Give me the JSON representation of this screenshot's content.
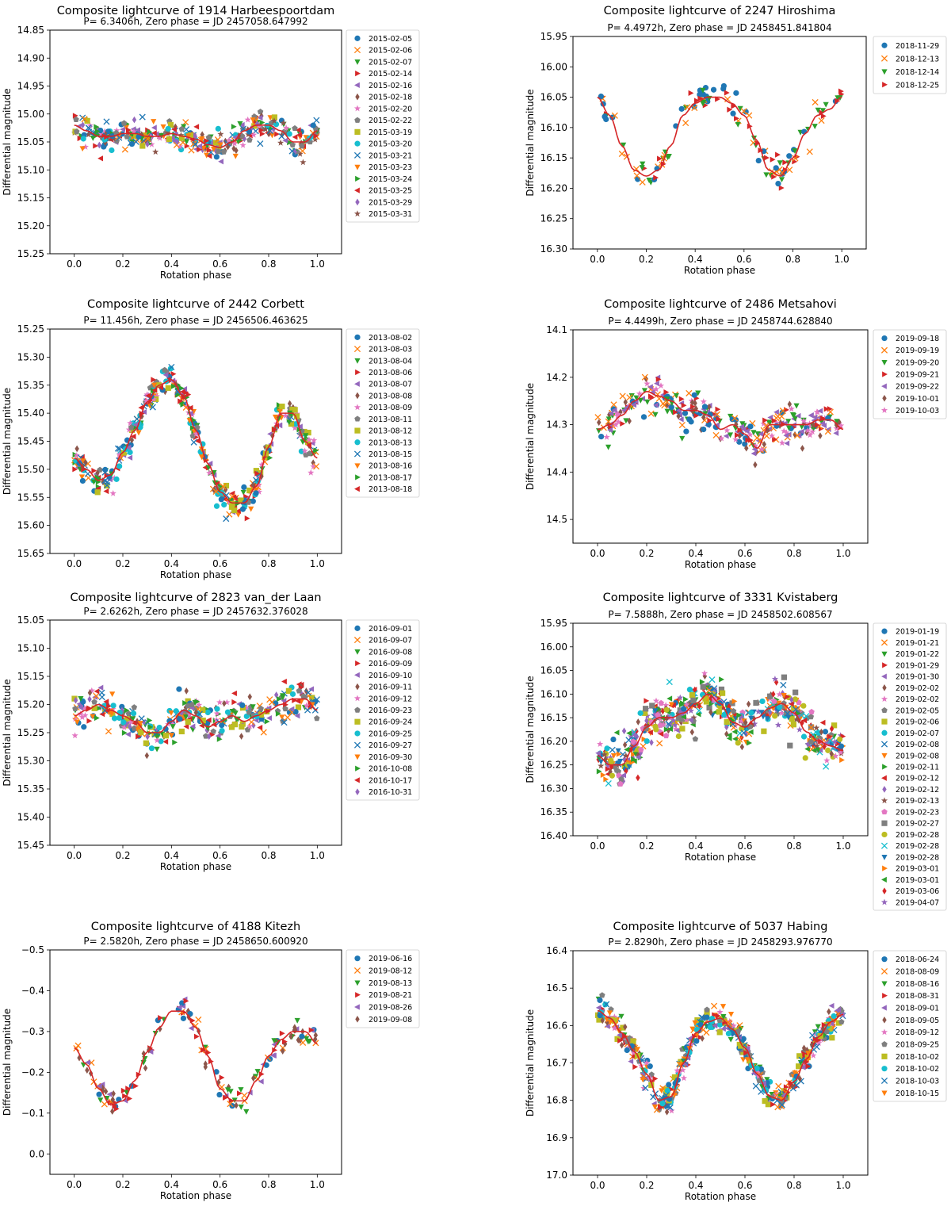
{
  "figure": {
    "domain_note": "",
    "palette": [
      "#1f77b4",
      "#ff7f0e",
      "#2ca02c",
      "#d62728",
      "#9467bd",
      "#8c564b",
      "#e377c2",
      "#7f7f7f",
      "#bcbd22",
      "#17becf"
    ],
    "marker_cycle": [
      "circle",
      "x",
      "triangle-down",
      "triangle-right",
      "triangle-left",
      "diamond",
      "star",
      "pentagon",
      "square"
    ],
    "fit_color": "#d62728"
  },
  "chart_data": [
    {
      "type": "scatter",
      "title": "Composite lightcurve of 1914 Harbeespoortdam",
      "subtitle": "P=  6.3406h, Zero phase = JD 2457058.647992",
      "xlabel": "Rotation phase",
      "ylabel": "Differential magnitude",
      "xlim": [
        -0.1,
        1.1
      ],
      "ylim": [
        15.25,
        14.85
      ],
      "xticks": [
        0.0,
        0.2,
        0.4,
        0.6,
        0.8,
        1.0
      ],
      "yticks": [
        14.85,
        14.9,
        14.95,
        15.0,
        15.05,
        15.1,
        15.15,
        15.2,
        15.25
      ],
      "ytick_labels": [
        "14.85",
        "14.90",
        "14.95",
        "15.00",
        "15.05",
        "15.10",
        "15.15",
        "15.20",
        "15.25"
      ],
      "legend": [
        "2015-02-05",
        "2015-02-06",
        "2015-02-07",
        "2015-02-14",
        "2015-02-16",
        "2015-02-18",
        "2015-02-20",
        "2015-02-22",
        "2015-03-19",
        "2015-03-20",
        "2015-03-21",
        "2015-03-23",
        "2015-03-24",
        "2015-03-25",
        "2015-03-29",
        "2015-03-31"
      ],
      "legend_colors": [
        0,
        1,
        2,
        3,
        4,
        5,
        6,
        7,
        8,
        9,
        0,
        1,
        2,
        3,
        4,
        5
      ],
      "fit_curve": {
        "x": [
          0.0,
          0.05,
          0.1,
          0.15,
          0.2,
          0.25,
          0.3,
          0.35,
          0.4,
          0.45,
          0.5,
          0.55,
          0.6,
          0.65,
          0.7,
          0.75,
          0.8,
          0.85,
          0.9,
          0.95,
          1.0
        ],
        "y": [
          15.02,
          15.03,
          15.04,
          15.04,
          15.035,
          15.035,
          15.04,
          15.04,
          15.035,
          15.04,
          15.045,
          15.055,
          15.06,
          15.05,
          15.03,
          15.02,
          15.02,
          15.03,
          15.05,
          15.05,
          15.03
        ]
      },
      "scatter_spread": 0.02,
      "scatter_count": 360
    },
    {
      "type": "scatter",
      "title": "Composite lightcurve of 2247 Hiroshima",
      "subtitle": "P=  4.4972h, Zero phase = JD 2458451.841804",
      "xlabel": "Rotation phase",
      "ylabel": "Differential magnitude",
      "xlim": [
        -0.1,
        1.1
      ],
      "ylim": [
        16.3,
        15.95
      ],
      "xticks": [
        0.0,
        0.2,
        0.4,
        0.6,
        0.8,
        1.0
      ],
      "yticks": [
        15.95,
        16.0,
        16.05,
        16.1,
        16.15,
        16.2,
        16.25,
        16.3
      ],
      "ytick_labels": [
        "15.95",
        "16.00",
        "16.05",
        "16.10",
        "16.15",
        "16.20",
        "16.25",
        "16.30"
      ],
      "legend": [
        "2018-11-29",
        "2018-12-13",
        "2018-12-14",
        "2018-12-25"
      ],
      "legend_colors": [
        0,
        1,
        2,
        3
      ],
      "fit_curve": {
        "x": [
          0.0,
          0.05,
          0.1,
          0.15,
          0.2,
          0.25,
          0.3,
          0.35,
          0.4,
          0.45,
          0.5,
          0.55,
          0.6,
          0.65,
          0.7,
          0.75,
          0.8,
          0.85,
          0.9,
          0.95,
          1.0
        ],
        "y": [
          16.05,
          16.08,
          16.13,
          16.17,
          16.18,
          16.17,
          16.13,
          16.08,
          16.06,
          16.05,
          16.05,
          16.06,
          16.08,
          16.12,
          16.17,
          16.18,
          16.15,
          16.11,
          16.08,
          16.07,
          16.05
        ]
      },
      "scatter_spread": 0.02,
      "scatter_count": 130
    },
    {
      "type": "scatter",
      "title": "Composite lightcurve of 2442 Corbett",
      "subtitle": "P=  11.456h, Zero phase = JD 2456506.463625",
      "xlabel": "Rotation phase",
      "ylabel": "Differential magnitude",
      "xlim": [
        -0.1,
        1.1
      ],
      "ylim": [
        15.65,
        15.25
      ],
      "xticks": [
        0.0,
        0.2,
        0.4,
        0.6,
        0.8,
        1.0
      ],
      "yticks": [
        15.25,
        15.3,
        15.35,
        15.4,
        15.45,
        15.5,
        15.55,
        15.6,
        15.65
      ],
      "ytick_labels": [
        "15.25",
        "15.30",
        "15.35",
        "15.40",
        "15.45",
        "15.50",
        "15.55",
        "15.60",
        "15.65"
      ],
      "legend": [
        "2013-08-02",
        "2013-08-03",
        "2013-08-04",
        "2013-08-06",
        "2013-08-07",
        "2013-08-08",
        "2013-08-09",
        "2013-08-11",
        "2013-08-12",
        "2013-08-13",
        "2013-08-15",
        "2013-08-16",
        "2013-08-17",
        "2013-08-18"
      ],
      "legend_colors": [
        0,
        1,
        2,
        3,
        4,
        5,
        6,
        7,
        8,
        9,
        0,
        1,
        2,
        3
      ],
      "fit_curve": {
        "x": [
          0.0,
          0.05,
          0.1,
          0.15,
          0.2,
          0.25,
          0.3,
          0.35,
          0.4,
          0.45,
          0.5,
          0.55,
          0.6,
          0.65,
          0.7,
          0.75,
          0.8,
          0.85,
          0.9,
          0.95,
          1.0
        ],
        "y": [
          15.48,
          15.5,
          15.52,
          15.51,
          15.47,
          15.43,
          15.38,
          15.35,
          15.34,
          15.37,
          15.43,
          15.49,
          15.54,
          15.56,
          15.56,
          15.53,
          15.46,
          15.4,
          15.4,
          15.45,
          15.48
        ]
      },
      "scatter_spread": 0.02,
      "scatter_count": 420
    },
    {
      "type": "scatter",
      "title": "Composite lightcurve of 2486 Metsahovi",
      "subtitle": "P=  4.4499h, Zero phase = JD 2458744.628840",
      "xlabel": "Rotation phase",
      "ylabel": "Differential magnitude",
      "xlim": [
        -0.1,
        1.1
      ],
      "ylim": [
        14.55,
        14.1
      ],
      "xticks": [
        0.0,
        0.2,
        0.4,
        0.6,
        0.8,
        1.0
      ],
      "yticks": [
        14.1,
        14.2,
        14.3,
        14.4,
        14.5
      ],
      "ytick_labels": [
        "14.1",
        "14.2",
        "14.3",
        "14.4",
        "14.5"
      ],
      "legend": [
        "2019-09-18",
        "2019-09-19",
        "2019-09-20",
        "2019-09-21",
        "2019-09-22",
        "2019-10-01",
        "2019-10-03"
      ],
      "legend_colors": [
        0,
        1,
        2,
        3,
        4,
        5,
        6
      ],
      "fit_curve": {
        "x": [
          0.0,
          0.05,
          0.1,
          0.15,
          0.2,
          0.25,
          0.3,
          0.35,
          0.4,
          0.45,
          0.5,
          0.55,
          0.6,
          0.65,
          0.7,
          0.75,
          0.8,
          0.85,
          0.9,
          0.95,
          1.0
        ],
        "y": [
          14.31,
          14.3,
          14.28,
          14.25,
          14.23,
          14.24,
          14.25,
          14.27,
          14.27,
          14.28,
          14.31,
          14.3,
          14.32,
          14.35,
          14.3,
          14.3,
          14.3,
          14.3,
          14.29,
          14.29,
          14.31
        ]
      },
      "scatter_spread": 0.03,
      "scatter_count": 320
    },
    {
      "type": "scatter",
      "title": "Composite lightcurve of 2823 van_der Laan",
      "subtitle": "P=  2.6262h, Zero phase = JD 2457632.376028",
      "xlabel": "Rotation phase",
      "ylabel": "Differential magnitude",
      "xlim": [
        -0.1,
        1.1
      ],
      "ylim": [
        15.45,
        15.05
      ],
      "xticks": [
        0.0,
        0.2,
        0.4,
        0.6,
        0.8,
        1.0
      ],
      "yticks": [
        15.05,
        15.1,
        15.15,
        15.2,
        15.25,
        15.3,
        15.35,
        15.4,
        15.45
      ],
      "ytick_labels": [
        "15.05",
        "15.10",
        "15.15",
        "15.20",
        "15.25",
        "15.30",
        "15.35",
        "15.40",
        "15.45"
      ],
      "legend": [
        "2016-09-01",
        "2016-09-07",
        "2016-09-08",
        "2016-09-09",
        "2016-09-10",
        "2016-09-11",
        "2016-09-12",
        "2016-09-23",
        "2016-09-24",
        "2016-09-25",
        "2016-09-27",
        "2016-09-30",
        "2016-10-08",
        "2016-10-17",
        "2016-10-31"
      ],
      "legend_colors": [
        0,
        1,
        2,
        3,
        4,
        5,
        6,
        7,
        8,
        9,
        0,
        1,
        2,
        3,
        4
      ],
      "fit_curve": {
        "x": [
          0.0,
          0.05,
          0.1,
          0.15,
          0.2,
          0.25,
          0.3,
          0.35,
          0.4,
          0.45,
          0.5,
          0.55,
          0.6,
          0.65,
          0.7,
          0.75,
          0.8,
          0.85,
          0.9,
          0.95,
          1.0
        ],
        "y": [
          15.22,
          15.21,
          15.2,
          15.21,
          15.22,
          15.23,
          15.25,
          15.25,
          15.23,
          15.21,
          15.22,
          15.24,
          15.23,
          15.22,
          15.23,
          15.22,
          15.21,
          15.2,
          15.19,
          15.19,
          15.21
        ]
      },
      "scatter_spread": 0.025,
      "scatter_count": 360
    },
    {
      "type": "scatter",
      "title": "Composite lightcurve of 3331 Kvistaberg",
      "subtitle": "P=  7.5888h, Zero phase = JD 2458502.608567",
      "xlabel": "Rotation phase",
      "ylabel": "Differential magnitude",
      "xlim": [
        -0.1,
        1.1
      ],
      "ylim": [
        16.4,
        15.95
      ],
      "xticks": [
        0.0,
        0.2,
        0.4,
        0.6,
        0.8,
        1.0
      ],
      "yticks": [
        15.95,
        16.0,
        16.05,
        16.1,
        16.15,
        16.2,
        16.25,
        16.3,
        16.35,
        16.4
      ],
      "ytick_labels": [
        "15.95",
        "16.00",
        "16.05",
        "16.10",
        "16.15",
        "16.20",
        "16.25",
        "16.30",
        "16.35",
        "16.40"
      ],
      "legend": [
        "2019-01-19",
        "2019-01-21",
        "2019-01-22",
        "2019-01-29",
        "2019-01-30",
        "2019-02-02",
        "2019-02-02",
        "2019-02-05",
        "2019-02-06",
        "2019-02-07",
        "2019-02-08",
        "2019-02-08",
        "2019-02-11",
        "2019-02-12",
        "2019-02-12",
        "2019-02-13",
        "2019-02-23",
        "2019-02-27",
        "2019-02-28",
        "2019-02-28",
        "2019-02-28",
        "2019-03-01",
        "2019-03-01",
        "2019-03-06",
        "2019-04-07"
      ],
      "legend_colors": [
        0,
        1,
        2,
        3,
        4,
        5,
        6,
        7,
        8,
        9,
        0,
        1,
        2,
        3,
        4,
        5,
        6,
        7,
        8,
        9,
        0,
        1,
        2,
        3,
        4
      ],
      "fit_curve": {
        "x": [
          0.0,
          0.05,
          0.1,
          0.15,
          0.2,
          0.25,
          0.3,
          0.35,
          0.4,
          0.45,
          0.5,
          0.55,
          0.6,
          0.65,
          0.7,
          0.75,
          0.8,
          0.85,
          0.9,
          0.95,
          1.0
        ],
        "y": [
          16.23,
          16.25,
          16.25,
          16.21,
          16.17,
          16.15,
          16.15,
          16.14,
          16.12,
          16.1,
          16.12,
          16.16,
          16.17,
          16.15,
          16.13,
          16.12,
          16.14,
          16.18,
          16.2,
          16.21,
          16.22
        ]
      },
      "scatter_spread": 0.035,
      "scatter_count": 560
    },
    {
      "type": "scatter",
      "title": "Composite lightcurve of 4188 Kitezh",
      "subtitle": "P=  2.5820h, Zero phase = JD 2458650.600920",
      "xlabel": "Rotation phase",
      "ylabel": "Differential magnitude",
      "xlim": [
        -0.1,
        1.1
      ],
      "ylim": [
        0.05,
        -0.5
      ],
      "xticks": [
        0.0,
        0.2,
        0.4,
        0.6,
        0.8,
        1.0
      ],
      "yticks": [
        -0.5,
        -0.4,
        -0.3,
        -0.2,
        -0.1,
        0.0
      ],
      "ytick_labels": [
        "−0.5",
        "−0.4",
        "−0.3",
        "−0.2",
        "−0.1",
        "0.0"
      ],
      "legend": [
        "2019-06-16",
        "2019-08-12",
        "2019-08-13",
        "2019-08-21",
        "2019-08-26",
        "2019-09-08"
      ],
      "legend_colors": [
        0,
        1,
        2,
        3,
        4,
        5
      ],
      "fit_curve": {
        "x": [
          0.0,
          0.05,
          0.1,
          0.15,
          0.2,
          0.25,
          0.3,
          0.35,
          0.4,
          0.45,
          0.5,
          0.55,
          0.6,
          0.65,
          0.7,
          0.75,
          0.8,
          0.85,
          0.9,
          0.95,
          1.0
        ],
        "y": [
          -0.26,
          -0.22,
          -0.16,
          -0.12,
          -0.13,
          -0.18,
          -0.25,
          -0.31,
          -0.35,
          -0.35,
          -0.31,
          -0.24,
          -0.16,
          -0.13,
          -0.13,
          -0.18,
          -0.24,
          -0.28,
          -0.3,
          -0.3,
          -0.27
        ]
      },
      "scatter_spread": 0.025,
      "scatter_count": 150
    },
    {
      "type": "scatter",
      "title": "Composite lightcurve of 5037 Habing",
      "subtitle": "P=  2.8290h, Zero phase = JD 2458293.976770",
      "xlabel": "Rotation phase",
      "ylabel": "Differential magnitude",
      "xlim": [
        -0.1,
        1.1
      ],
      "ylim": [
        17.0,
        16.4
      ],
      "xticks": [
        0.0,
        0.2,
        0.4,
        0.6,
        0.8,
        1.0
      ],
      "yticks": [
        16.4,
        16.5,
        16.6,
        16.7,
        16.8,
        16.9,
        17.0
      ],
      "ytick_labels": [
        "16.4",
        "16.5",
        "16.6",
        "16.7",
        "16.8",
        "16.9",
        "17.0"
      ],
      "legend": [
        "2018-06-24",
        "2018-08-09",
        "2018-08-16",
        "2018-08-31",
        "2018-09-01",
        "2018-09-05",
        "2018-09-12",
        "2018-09-25",
        "2018-10-02",
        "2018-10-02",
        "2018-10-03",
        "2018-10-15"
      ],
      "legend_colors": [
        0,
        1,
        2,
        3,
        4,
        5,
        6,
        7,
        8,
        9,
        0,
        1
      ],
      "fit_curve": {
        "x": [
          0.0,
          0.05,
          0.1,
          0.15,
          0.2,
          0.25,
          0.3,
          0.35,
          0.4,
          0.45,
          0.5,
          0.55,
          0.6,
          0.65,
          0.7,
          0.75,
          0.8,
          0.85,
          0.9,
          0.95,
          1.0
        ],
        "y": [
          16.56,
          16.58,
          16.62,
          16.67,
          16.73,
          16.8,
          16.79,
          16.7,
          16.62,
          16.59,
          16.58,
          16.61,
          16.66,
          16.73,
          16.79,
          16.8,
          16.75,
          16.69,
          16.63,
          16.59,
          16.57
        ]
      },
      "scatter_spread": 0.03,
      "scatter_count": 520
    }
  ]
}
